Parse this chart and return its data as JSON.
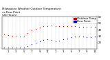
{
  "title": "Milwaukee Weather Outdoor Temperature",
  "title2": "vs Dew Point",
  "title3": "(24 Hours)",
  "legend_temp": "Outdoor Temp",
  "legend_dew": "Dew Point",
  "temp_color": "#cc0000",
  "dew_color": "#0000cc",
  "bg_color": "#ffffff",
  "grid_color": "#999999",
  "ylim": [
    10,
    60
  ],
  "ytick_vals": [
    20,
    30,
    40,
    50,
    60
  ],
  "xlim": [
    0,
    23
  ],
  "temp_x": [
    0,
    1,
    2,
    3,
    4,
    5,
    6,
    7,
    8,
    9,
    10,
    11,
    12,
    13,
    14,
    15,
    16,
    17,
    18,
    19,
    20,
    21,
    22,
    23
  ],
  "temp_y": [
    33,
    32,
    31,
    30,
    30,
    29,
    35,
    39,
    41,
    43,
    45,
    46,
    47,
    45,
    45,
    46,
    46,
    45,
    45,
    44,
    44,
    44,
    44,
    44
  ],
  "dew_x": [
    0,
    1,
    2,
    3,
    4,
    5,
    6,
    7,
    8,
    9,
    10,
    11,
    12,
    13,
    14,
    15,
    16,
    17,
    18,
    19,
    20,
    21,
    22,
    23
  ],
  "dew_y": [
    13,
    13,
    13,
    13,
    13,
    13,
    15,
    18,
    20,
    22,
    24,
    25,
    24,
    22,
    23,
    25,
    26,
    28,
    29,
    30,
    29,
    28,
    28,
    29
  ],
  "xtick_positions": [
    1,
    3,
    5,
    7,
    9,
    11,
    13,
    15,
    17,
    19,
    21,
    23
  ],
  "xtick_labels": [
    "1",
    "3",
    "5",
    "7",
    "9",
    "11",
    "1",
    "3",
    "5",
    "7",
    "9",
    "11"
  ],
  "title_fontsize": 3.0,
  "tick_fontsize": 2.8,
  "legend_fontsize": 2.8
}
